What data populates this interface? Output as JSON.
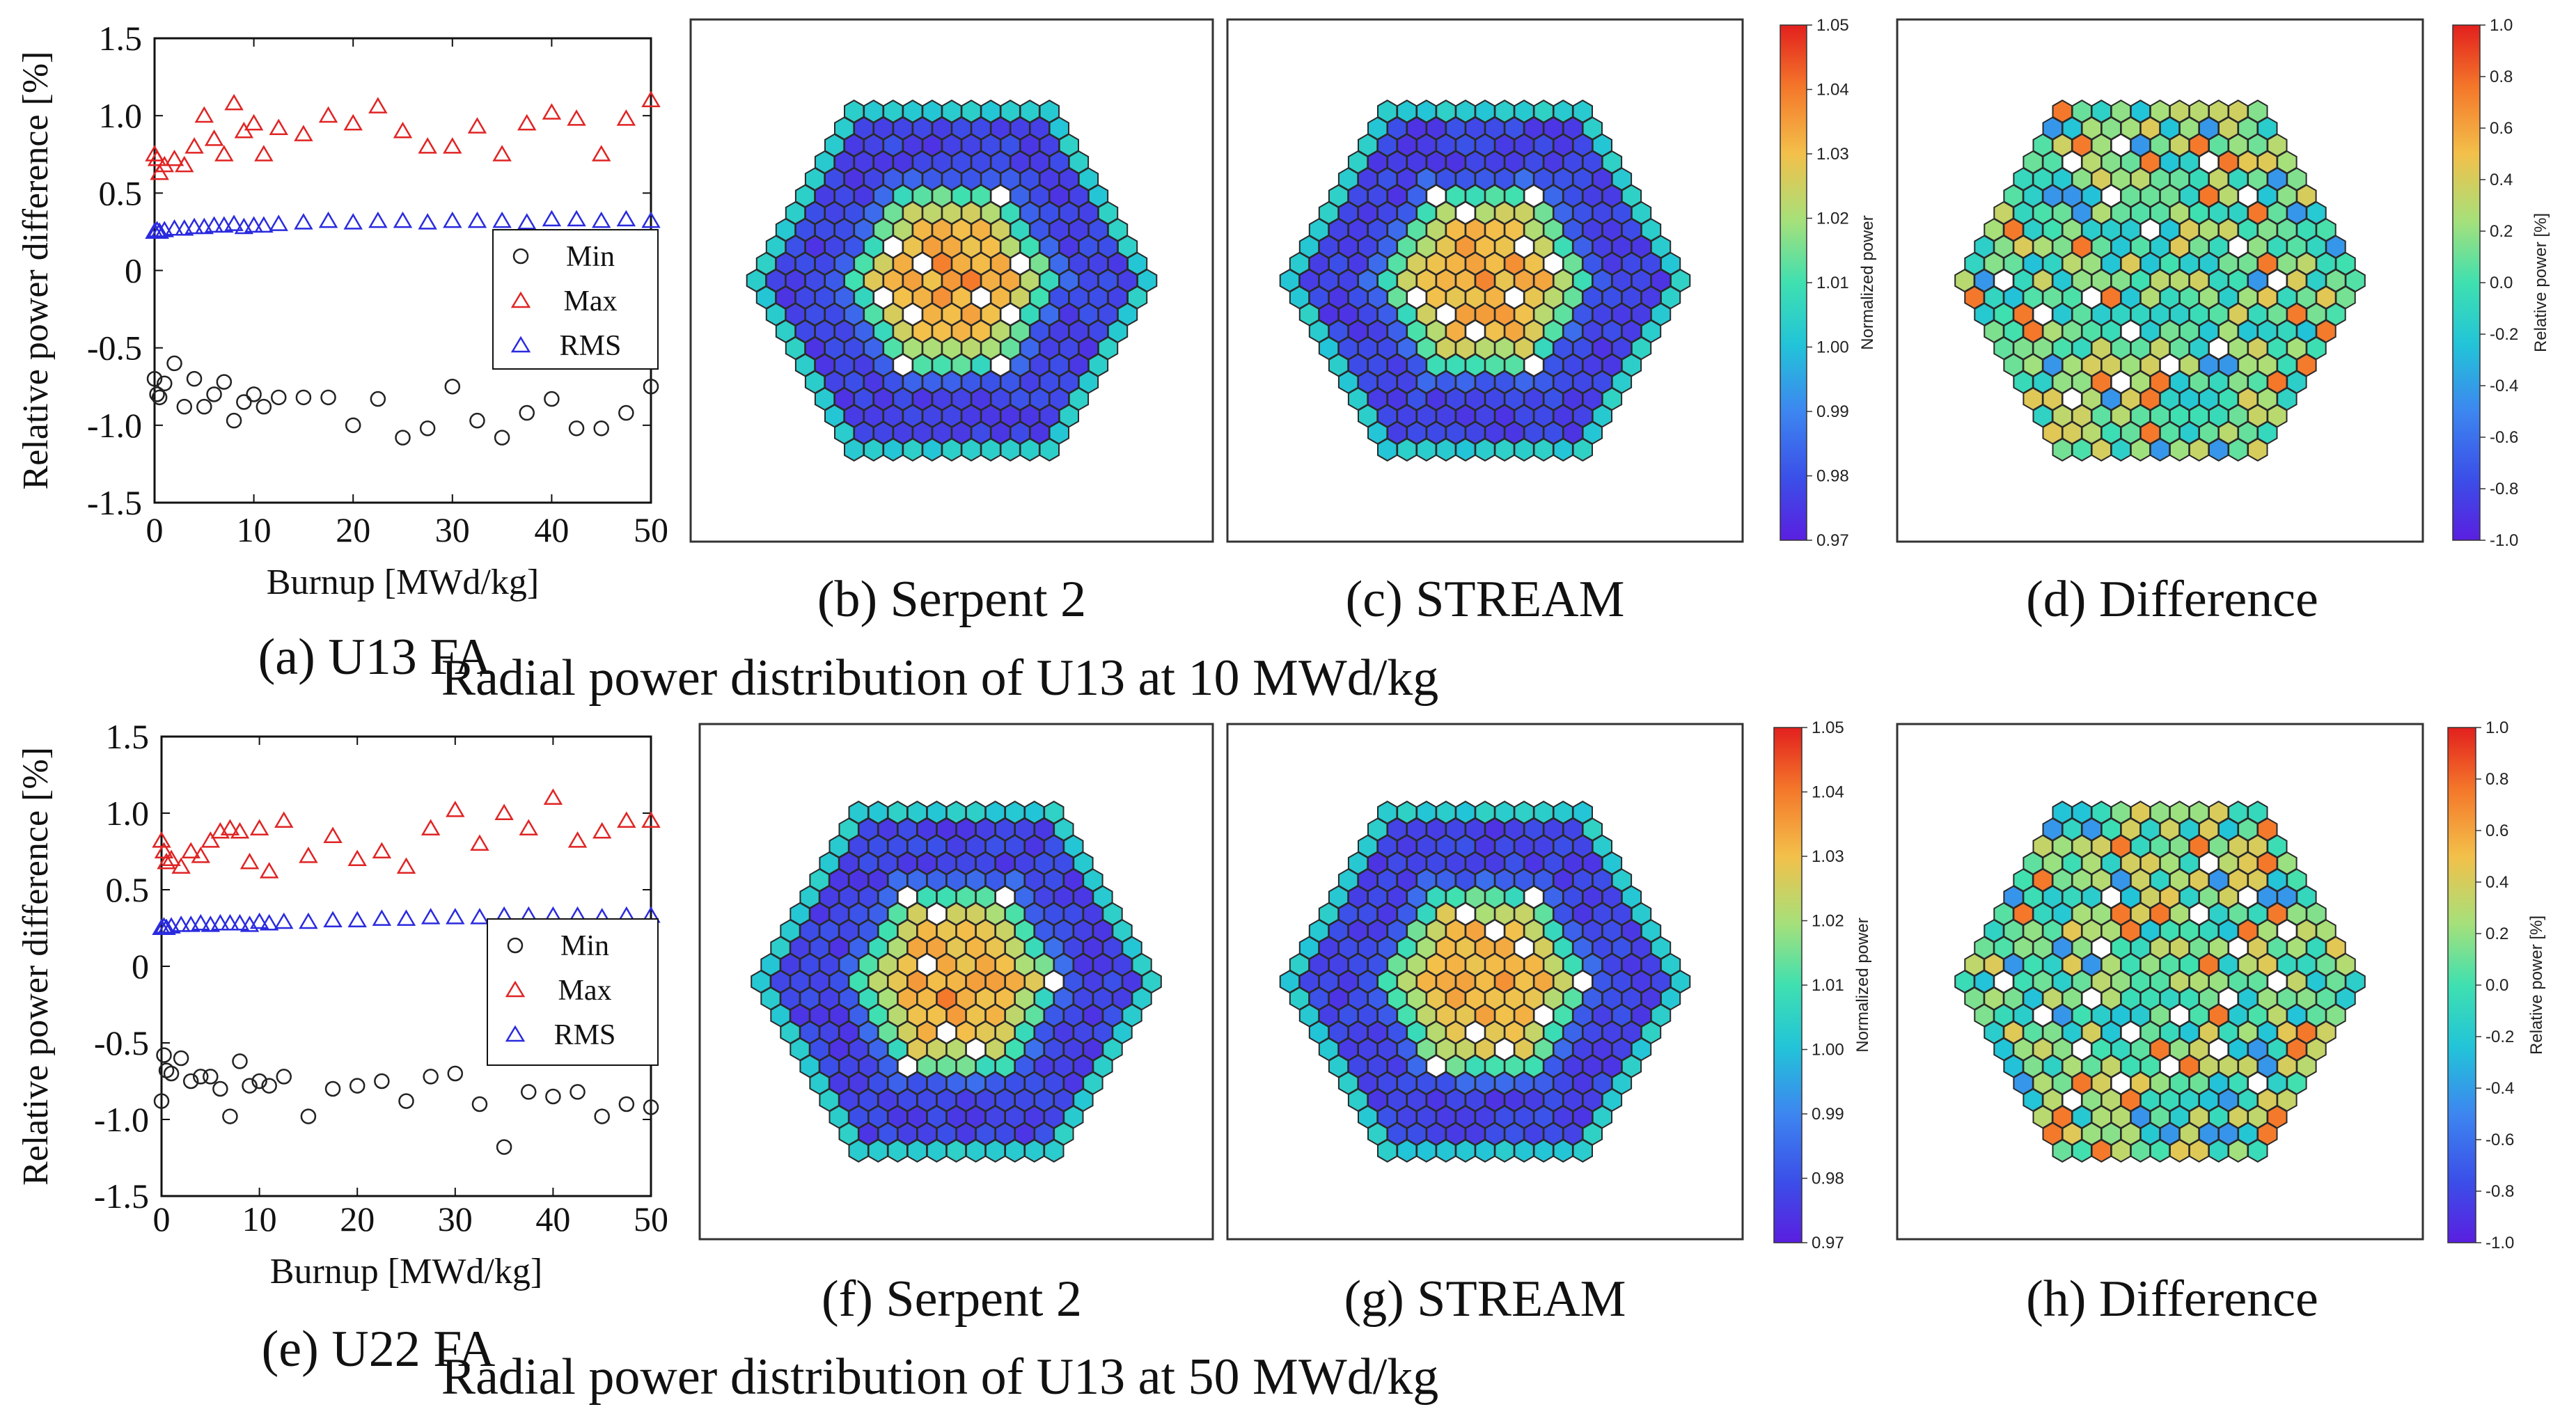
{
  "titles": {
    "top": "Radial power distribution of U13 at 10 MWd/kg",
    "bottom": "Radial power distribution of U13 at 50 MWd/kg"
  },
  "colors": {
    "min_marker": "#222222",
    "max_marker": "#e02424",
    "rms_marker": "#2a2ae0",
    "colormap": [
      "#30123b",
      "#4662d7",
      "#36aaf9",
      "#1ae4b6",
      "#72fe5e",
      "#c7ef34",
      "#faba39",
      "#f66b19",
      "#ca2a04",
      "#7a0403"
    ]
  },
  "chart_data": [
    {
      "type": "scatter",
      "caption": "(a) U13 FA",
      "xlabel": "Burnup [MWd/kg]",
      "ylabel": "Relative power difference [%]",
      "xlim": [
        0,
        50
      ],
      "ylim": [
        -1.5,
        1.5
      ],
      "xticks": [
        "0",
        "10",
        "20",
        "30",
        "40",
        "50"
      ],
      "yticks": [
        "1.5",
        "1.0",
        "0.5",
        "0",
        "-0.5",
        "-1.0",
        "-1.5"
      ],
      "grid": false,
      "legend_position": "right-middle",
      "x": [
        0,
        0.25,
        0.5,
        1,
        2,
        3,
        4,
        5,
        6,
        7,
        8,
        9,
        10,
        11,
        12.5,
        15,
        17.5,
        20,
        22.5,
        25,
        27.5,
        30,
        32.5,
        35,
        37.5,
        40,
        42.5,
        45,
        47.5,
        50
      ],
      "series": [
        {
          "name": "Max",
          "marker": "triangle",
          "values": [
            0.75,
            0.72,
            0.63,
            0.68,
            0.72,
            0.68,
            0.8,
            1.0,
            0.85,
            0.75,
            1.08,
            0.9,
            0.95,
            0.75,
            0.92,
            0.88,
            1.0,
            0.95,
            1.06,
            0.9,
            0.8,
            0.8,
            0.93,
            0.75,
            0.95,
            1.02,
            0.98,
            0.75,
            0.98,
            1.1
          ]
        },
        {
          "name": "RMS",
          "marker": "triangle",
          "values": [
            0.25,
            0.26,
            0.25,
            0.26,
            0.27,
            0.27,
            0.28,
            0.28,
            0.29,
            0.29,
            0.3,
            0.28,
            0.29,
            0.29,
            0.3,
            0.31,
            0.32,
            0.31,
            0.32,
            0.32,
            0.31,
            0.32,
            0.32,
            0.32,
            0.31,
            0.33,
            0.33,
            0.32,
            0.33,
            0.32
          ]
        },
        {
          "name": "Min",
          "marker": "circle",
          "values": [
            -0.7,
            -0.8,
            -0.82,
            -0.73,
            -0.6,
            -0.88,
            -0.7,
            -0.88,
            -0.8,
            -0.72,
            -0.97,
            -0.85,
            -0.8,
            -0.88,
            -0.82,
            -0.82,
            -0.82,
            -1.0,
            -0.83,
            -1.08,
            -1.02,
            -0.75,
            -0.97,
            -1.08,
            -0.92,
            -0.83,
            -1.02,
            -1.02,
            -0.92,
            -0.75
          ]
        }
      ]
    },
    {
      "type": "heatmap",
      "caption": "(b) Serpent 2",
      "pattern": "radial_normalized",
      "seed": 11
    },
    {
      "type": "heatmap",
      "caption": "(c) STREAM",
      "pattern": "radial_normalized",
      "seed": 23,
      "colorbar": {
        "label": "Normalized power",
        "ticks": [
          "1.05",
          "1.04",
          "1.03",
          "1.02",
          "1.01",
          "1.00",
          "0.99",
          "0.98",
          "0.97"
        ]
      }
    },
    {
      "type": "heatmap",
      "caption": "(d) Difference",
      "pattern": "difference",
      "seed": 37,
      "colorbar": {
        "label": "Relative power [%]",
        "ticks": [
          "1.0",
          "0.8",
          "0.6",
          "0.4",
          "0.2",
          "0.0",
          "-0.2",
          "-0.4",
          "-0.6",
          "-0.8",
          "-1.0"
        ]
      }
    },
    {
      "type": "scatter",
      "caption": "(e) U22 FA",
      "xlabel": "Burnup [MWd/kg]",
      "ylabel": "Relative power difference [%]",
      "xlim": [
        0,
        50
      ],
      "ylim": [
        -1.5,
        1.5
      ],
      "xticks": [
        "0",
        "10",
        "20",
        "30",
        "40",
        "50"
      ],
      "yticks": [
        "1.5",
        "1.0",
        "0.5",
        "0",
        "-0.5",
        "-1.0",
        "-1.5"
      ],
      "grid": false,
      "legend_position": "right-middle",
      "x": [
        0,
        0.25,
        0.5,
        1,
        2,
        3,
        4,
        5,
        6,
        7,
        8,
        9,
        10,
        11,
        12.5,
        15,
        17.5,
        20,
        22.5,
        25,
        27.5,
        30,
        32.5,
        35,
        37.5,
        40,
        42.5,
        45,
        47.5,
        50
      ],
      "series": [
        {
          "name": "Max",
          "marker": "triangle",
          "values": [
            0.82,
            0.75,
            0.68,
            0.7,
            0.65,
            0.75,
            0.72,
            0.82,
            0.88,
            0.9,
            0.88,
            0.68,
            0.9,
            0.62,
            0.95,
            0.72,
            0.85,
            0.7,
            0.75,
            0.65,
            0.9,
            1.02,
            0.8,
            1.0,
            0.9,
            1.1,
            0.82,
            0.88,
            0.95,
            0.95
          ]
        },
        {
          "name": "RMS",
          "marker": "triangle",
          "values": [
            0.25,
            0.26,
            0.25,
            0.26,
            0.27,
            0.27,
            0.28,
            0.27,
            0.28,
            0.28,
            0.28,
            0.27,
            0.29,
            0.28,
            0.29,
            0.29,
            0.3,
            0.3,
            0.31,
            0.31,
            0.32,
            0.32,
            0.32,
            0.33,
            0.33,
            0.33,
            0.33,
            0.32,
            0.33,
            0.33
          ]
        },
        {
          "name": "Min",
          "marker": "circle",
          "values": [
            -0.88,
            -0.58,
            -0.68,
            -0.7,
            -0.6,
            -0.75,
            -0.72,
            -0.72,
            -0.8,
            -0.98,
            -0.62,
            -0.78,
            -0.75,
            -0.78,
            -0.72,
            -0.98,
            -0.8,
            -0.78,
            -0.75,
            -0.88,
            -0.72,
            -0.7,
            -0.9,
            -1.18,
            -0.82,
            -0.85,
            -0.82,
            -0.98,
            -0.9,
            -0.92
          ]
        }
      ]
    },
    {
      "type": "heatmap",
      "caption": "(f) Serpent 2",
      "pattern": "radial_normalized",
      "seed": 41
    },
    {
      "type": "heatmap",
      "caption": "(g) STREAM",
      "pattern": "radial_normalized",
      "seed": 53,
      "colorbar": {
        "label": "Normalized power",
        "ticks": [
          "1.05",
          "1.04",
          "1.03",
          "1.02",
          "1.01",
          "1.00",
          "0.99",
          "0.98",
          "0.97"
        ]
      }
    },
    {
      "type": "heatmap",
      "caption": "(h) Difference",
      "pattern": "difference",
      "seed": 67,
      "colorbar": {
        "label": "Relative power [%]",
        "ticks": [
          "1.0",
          "0.8",
          "0.6",
          "0.4",
          "0.2",
          "0.0",
          "-0.2",
          "-0.4",
          "-0.6",
          "-0.8",
          "-1.0"
        ]
      }
    }
  ]
}
